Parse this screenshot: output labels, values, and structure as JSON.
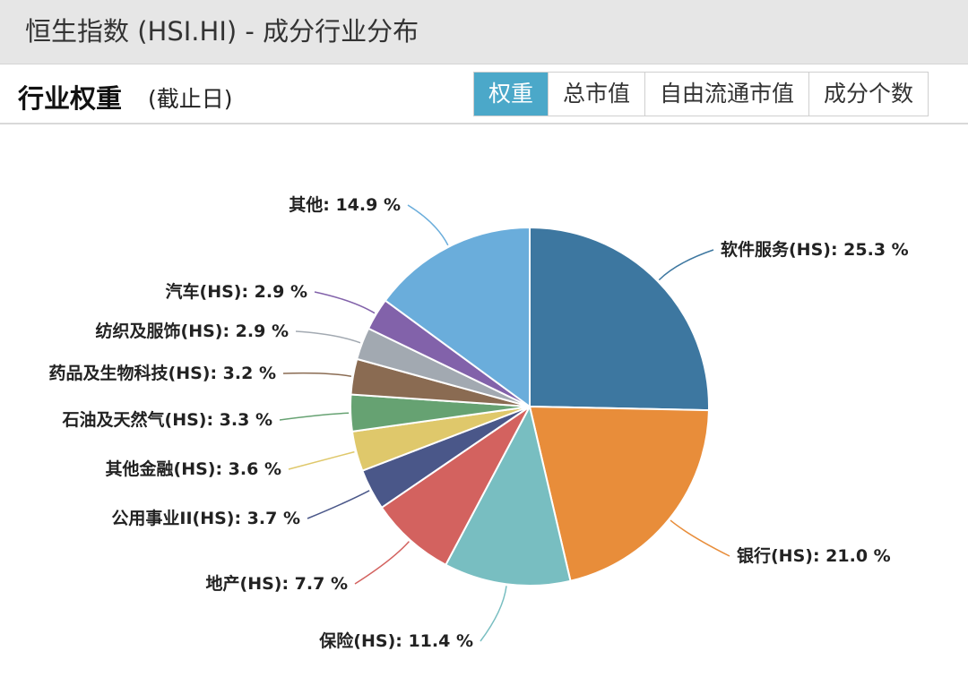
{
  "header": {
    "title": "恒生指数 (HSI.HI) - 成分行业分布"
  },
  "section": {
    "title": "行业权重",
    "note": "(截止日)"
  },
  "tabs": [
    {
      "label": "权重",
      "active": true
    },
    {
      "label": "总市值",
      "active": false
    },
    {
      "label": "自由流通市值",
      "active": false
    },
    {
      "label": "成分个数",
      "active": false
    }
  ],
  "colors": {
    "accent": "#4ba8c9"
  },
  "chart_data": {
    "type": "pie",
    "unit": "%",
    "slices": [
      {
        "label": "软件服务(HS)",
        "value": 25.3,
        "color": "#3d77a0"
      },
      {
        "label": "银行(HS)",
        "value": 21.0,
        "color": "#e88d3a"
      },
      {
        "label": "保险(HS)",
        "value": 11.4,
        "color": "#78bec1"
      },
      {
        "label": "地产(HS)",
        "value": 7.7,
        "color": "#d3625f"
      },
      {
        "label": "公用事业II(HS)",
        "value": 3.7,
        "color": "#4a5789"
      },
      {
        "label": "其他金融(HS)",
        "value": 3.6,
        "color": "#dfc86b"
      },
      {
        "label": "石油及天然气(HS)",
        "value": 3.3,
        "color": "#66a272"
      },
      {
        "label": "药品及生物科技(HS)",
        "value": 3.2,
        "color": "#8a6b52"
      },
      {
        "label": "纺织及服饰(HS)",
        "value": 2.9,
        "color": "#a2a9b1"
      },
      {
        "label": "汽车(HS)",
        "value": 2.9,
        "color": "#8262aa"
      },
      {
        "label": "其他",
        "value": 14.9,
        "color": "#6aaddb"
      }
    ]
  }
}
